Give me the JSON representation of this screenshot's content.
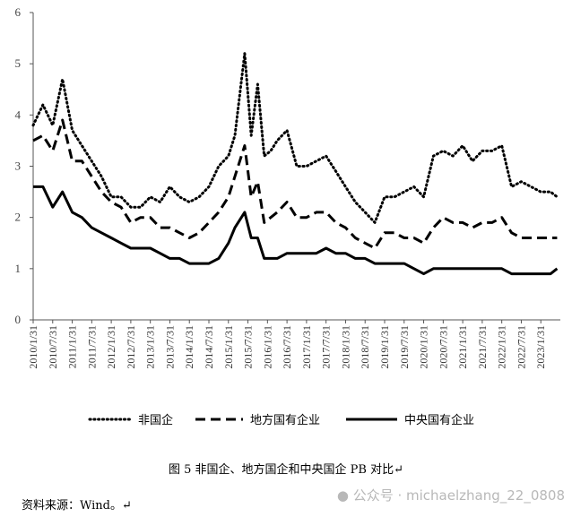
{
  "chart_data": {
    "type": "line",
    "title": "",
    "xlabel": "",
    "ylabel": "",
    "ylim": [
      0,
      6
    ],
    "yticks": [
      0,
      1,
      2,
      3,
      4,
      5,
      6
    ],
    "x_ticks": [
      "2010/1/31",
      "2010/7/31",
      "2011/1/31",
      "2011/7/31",
      "2012/1/31",
      "2012/7/31",
      "2013/1/31",
      "2013/7/31",
      "2014/1/31",
      "2014/7/31",
      "2015/1/31",
      "2015/7/31",
      "2016/1/31",
      "2016/7/31",
      "2017/1/31",
      "2017/7/31",
      "2018/1/31",
      "2018/7/31",
      "2019/1/31",
      "2019/7/31",
      "2020/1/31",
      "2020/7/31",
      "2021/1/31",
      "2021/7/31",
      "2022/1/31",
      "2022/7/31",
      "2023/1/31"
    ],
    "x": [
      "2010/1",
      "2010/4",
      "2010/7",
      "2010/10",
      "2011/1",
      "2011/4",
      "2011/7",
      "2011/10",
      "2012/1",
      "2012/4",
      "2012/7",
      "2012/10",
      "2013/1",
      "2013/4",
      "2013/7",
      "2013/10",
      "2014/1",
      "2014/4",
      "2014/7",
      "2014/10",
      "2015/1",
      "2015/3",
      "2015/6",
      "2015/8",
      "2015/10",
      "2015/12",
      "2016/2",
      "2016/4",
      "2016/7",
      "2016/10",
      "2017/1",
      "2017/4",
      "2017/7",
      "2017/10",
      "2018/1",
      "2018/4",
      "2018/7",
      "2018/10",
      "2019/1",
      "2019/4",
      "2019/7",
      "2019/10",
      "2020/1",
      "2020/4",
      "2020/7",
      "2020/10",
      "2021/1",
      "2021/4",
      "2021/7",
      "2021/10",
      "2022/1",
      "2022/4",
      "2022/7",
      "2022/10",
      "2023/1",
      "2023/4",
      "2023/6"
    ],
    "series": [
      {
        "name": "非国企",
        "style": "dotted",
        "values": [
          3.8,
          4.2,
          3.8,
          4.7,
          3.7,
          3.4,
          3.1,
          2.8,
          2.4,
          2.4,
          2.2,
          2.2,
          2.4,
          2.3,
          2.6,
          2.4,
          2.3,
          2.4,
          2.6,
          3.0,
          3.2,
          3.6,
          5.2,
          3.6,
          4.6,
          3.2,
          3.3,
          3.5,
          3.7,
          3.0,
          3.0,
          3.1,
          3.2,
          2.9,
          2.6,
          2.3,
          2.1,
          1.9,
          2.4,
          2.4,
          2.5,
          2.6,
          2.4,
          3.2,
          3.3,
          3.2,
          3.4,
          3.1,
          3.3,
          3.3,
          3.4,
          2.6,
          2.7,
          2.6,
          2.5,
          2.5,
          2.4
        ]
      },
      {
        "name": "地方国有企业",
        "style": "dashed",
        "values": [
          3.5,
          3.6,
          3.3,
          3.9,
          3.1,
          3.1,
          2.8,
          2.5,
          2.3,
          2.2,
          1.9,
          2.0,
          2.0,
          1.8,
          1.8,
          1.7,
          1.6,
          1.7,
          1.9,
          2.1,
          2.4,
          2.8,
          3.4,
          2.4,
          2.7,
          1.9,
          2.0,
          2.1,
          2.3,
          2.0,
          2.0,
          2.1,
          2.1,
          1.9,
          1.8,
          1.6,
          1.5,
          1.4,
          1.7,
          1.7,
          1.6,
          1.6,
          1.5,
          1.8,
          2.0,
          1.9,
          1.9,
          1.8,
          1.9,
          1.9,
          2.0,
          1.7,
          1.6,
          1.6,
          1.6,
          1.6,
          1.6
        ]
      },
      {
        "name": "中央国有企业",
        "style": "solid",
        "values": [
          2.6,
          2.6,
          2.2,
          2.5,
          2.1,
          2.0,
          1.8,
          1.7,
          1.6,
          1.5,
          1.4,
          1.4,
          1.4,
          1.3,
          1.2,
          1.2,
          1.1,
          1.1,
          1.1,
          1.2,
          1.5,
          1.8,
          2.1,
          1.6,
          1.6,
          1.2,
          1.2,
          1.2,
          1.3,
          1.3,
          1.3,
          1.3,
          1.4,
          1.3,
          1.3,
          1.2,
          1.2,
          1.1,
          1.1,
          1.1,
          1.1,
          1.0,
          0.9,
          1.0,
          1.0,
          1.0,
          1.0,
          1.0,
          1.0,
          1.0,
          1.0,
          0.9,
          0.9,
          0.9,
          0.9,
          0.9,
          1.0
        ]
      }
    ],
    "legend_position": "bottom"
  },
  "caption": "图 5    非国企、地方国企和中央国企 PB 对比↵",
  "source": "资料来源：Wind。↵",
  "watermark": "公众号 · michaelzhang_22_0808"
}
